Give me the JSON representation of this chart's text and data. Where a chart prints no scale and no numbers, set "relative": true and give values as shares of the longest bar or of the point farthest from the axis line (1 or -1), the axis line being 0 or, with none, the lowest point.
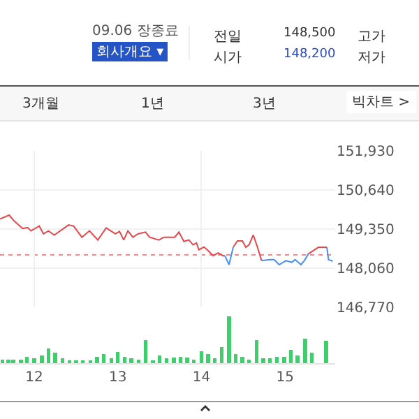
{
  "chart_data": [
    {
      "type": "other",
      "annotations": [
        "09.06 장종료",
        "회사개요 ▾",
        "전일",
        "148,500",
        "고가",
        "시가",
        "148,200",
        "저가",
        "3개월",
        "1년",
        "3년",
        "빅차트 >"
      ]
    },
    {
      "type": "line",
      "xlim": [
        11.59,
        15.6
      ],
      "ylim": [
        146770,
        151930
      ],
      "yticks": [
        {
          "value": 146770,
          "label": "146,770"
        },
        {
          "value": 148060,
          "label": "148,060"
        },
        {
          "value": 149350,
          "label": "149,350"
        },
        {
          "value": 150640,
          "label": "150,640"
        },
        {
          "value": 151930,
          "label": "151,930"
        }
      ],
      "xticks": [
        {
          "value": 12,
          "label": null
        },
        {
          "value": 14,
          "label": null
        }
      ],
      "tick_labels": "y",
      "grid": true,
      "x": [
        11.59,
        11.7,
        11.75,
        11.86,
        11.92,
        11.96,
        12.06,
        12.11,
        12.17,
        12.24,
        12.41,
        12.47,
        12.57,
        12.66,
        12.76,
        12.86,
        12.97,
        13.02,
        13.07,
        13.12,
        13.18,
        13.24,
        13.33,
        13.38,
        13.49,
        13.55,
        13.68,
        13.73,
        13.79,
        13.85,
        13.9,
        13.94,
        13.97,
        14.03,
        14.08,
        14.14,
        14.2,
        14.26,
        14.28,
        14.33,
        14.38,
        14.43,
        14.49,
        14.53,
        14.57,
        14.62,
        14.67,
        14.72,
        14.82,
        14.87,
        14.93,
        15.01,
        15.08,
        15.12,
        15.19,
        15.23,
        15.28,
        15.4,
        15.5,
        15.52,
        15.57
      ],
      "series": [
        {
          "color": "#e8474c",
          "values": [
            149680,
            149810,
            149645,
            149370,
            149400,
            149290,
            149450,
            149190,
            149290,
            149155,
            149485,
            149450,
            149080,
            149290,
            148990,
            149385,
            149190,
            149270,
            148990,
            149290,
            149080,
            149190,
            149250,
            149080,
            148990,
            149080,
            149080,
            149250,
            148940,
            148990,
            148830,
            148890,
            148665,
            148760,
            148635,
            148470,
            148565,
            148470,
            148470,
            null,
            148750,
            148960,
            148960,
            148750,
            148830,
            149155,
            148750,
            148305,
            null,
            null,
            null,
            null,
            null,
            null,
            null,
            null,
            148535,
            148750,
            148750,
            null,
            null
          ]
        },
        {
          "color": "#4a8ff0",
          "values": [
            null,
            null,
            null,
            null,
            null,
            null,
            null,
            null,
            null,
            null,
            null,
            null,
            null,
            null,
            null,
            null,
            null,
            null,
            null,
            null,
            null,
            null,
            null,
            null,
            null,
            null,
            null,
            null,
            null,
            null,
            null,
            null,
            null,
            null,
            null,
            null,
            null,
            null,
            148470,
            148175,
            148750,
            null,
            null,
            null,
            null,
            null,
            null,
            148305,
            148340,
            148340,
            148175,
            148305,
            148255,
            148340,
            148175,
            148305,
            148535,
            null,
            148750,
            148340,
            148290
          ]
        }
      ],
      "ref_lines": [
        {
          "axis": "y",
          "value": 148500,
          "color": "#f08a8a",
          "line_style": "dotted"
        }
      ]
    },
    {
      "type": "bar",
      "relative": true,
      "xlim": [
        11.59,
        15.6
      ],
      "xticks": [
        12,
        13,
        14,
        15
      ],
      "tick_labels": "x",
      "x": [
        11.62,
        11.69,
        11.75,
        11.84,
        11.91,
        12.0,
        12.09,
        12.17,
        12.25,
        12.34,
        12.42,
        12.5,
        12.58,
        12.67,
        12.75,
        12.83,
        12.92,
        13.0,
        13.08,
        13.16,
        13.25,
        13.33,
        13.42,
        13.5,
        13.58,
        13.67,
        13.75,
        13.83,
        13.91,
        14.0,
        14.08,
        14.16,
        14.24,
        14.33,
        14.41,
        14.49,
        14.57,
        14.66,
        14.74,
        14.82,
        14.9,
        14.99,
        15.07,
        15.15,
        15.24,
        15.32,
        15.49
      ],
      "series": [
        {
          "color": "#3ecf6c",
          "values": [
            0.08,
            0.08,
            0.08,
            0.08,
            0.14,
            0.1,
            0.16,
            0.32,
            0.22,
            0.1,
            0.06,
            0.06,
            0.06,
            0.06,
            0.14,
            0.2,
            0.1,
            0.24,
            0.14,
            0.1,
            0.08,
            0.5,
            0.06,
            0.16,
            0.1,
            0.12,
            0.14,
            0.12,
            0.08,
            0.26,
            0.2,
            0.1,
            0.34,
            1,
            0.2,
            0.14,
            0.08,
            0.5,
            0.1,
            0.1,
            0.14,
            0.14,
            0.28,
            0.16,
            0.52,
            0.22,
            0.48
          ]
        }
      ]
    }
  ]
}
